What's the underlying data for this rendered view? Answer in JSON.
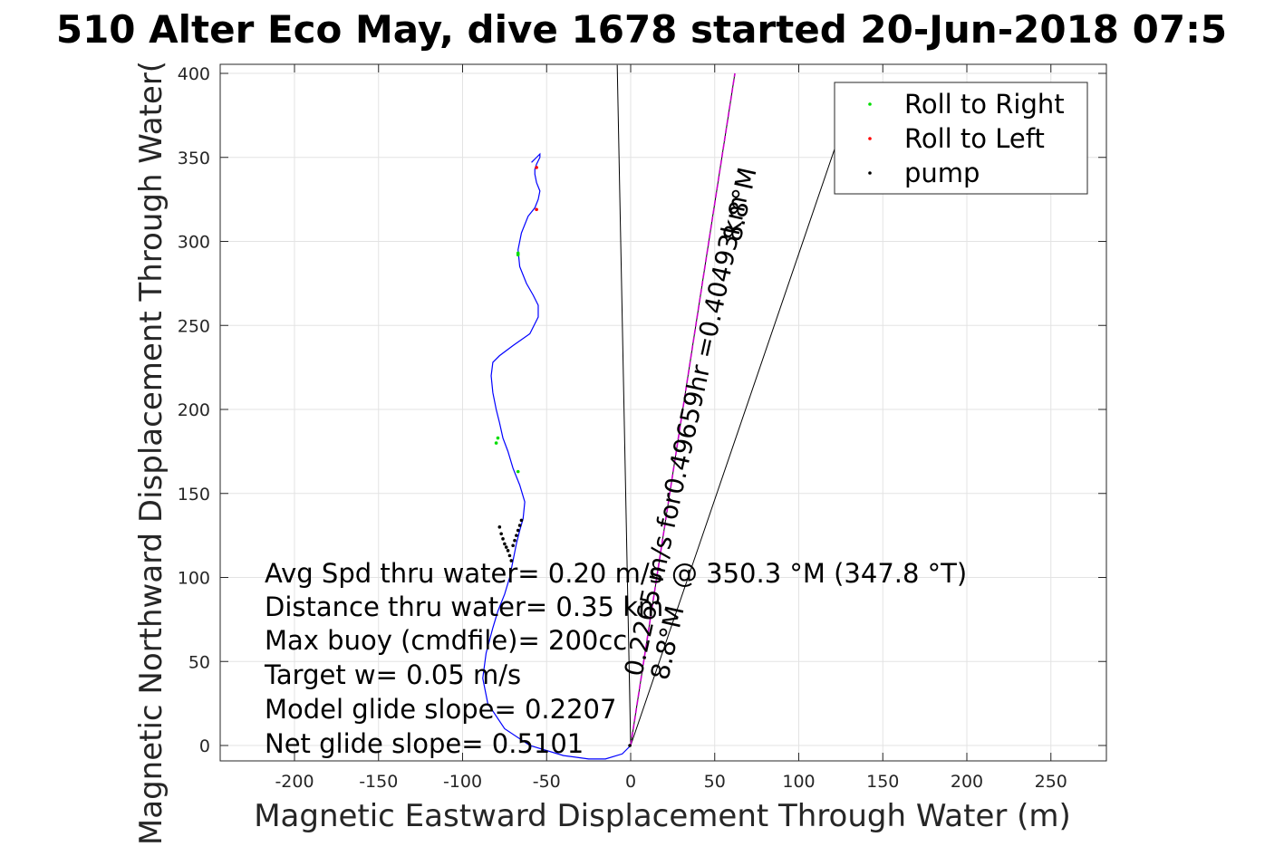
{
  "chart_data": {
    "type": "line",
    "title": "510 Alter Eco May, dive 1678 started 20-Jun-2018 07:5",
    "xlabel": "Magnetic Eastward Displacement Through Water (m)",
    "ylabel": "Magnetic Northward Displacement Through Water(",
    "xlim": [
      -245,
      280
    ],
    "ylim": [
      -8,
      405
    ],
    "xticks": [
      "-200",
      "-150",
      "-100",
      "-50",
      "0",
      "50",
      "100",
      "150",
      "200",
      "250"
    ],
    "xtick_values": [
      -200,
      -150,
      -100,
      -50,
      0,
      50,
      100,
      150,
      200,
      250
    ],
    "yticks": [
      "0",
      "50",
      "100",
      "150",
      "200",
      "250",
      "300",
      "350",
      "400"
    ],
    "ytick_values": [
      0,
      50,
      100,
      150,
      200,
      250,
      300,
      350,
      400
    ],
    "grid": true,
    "legend_position": "top-right",
    "legend": [
      {
        "label": "Roll to Right",
        "color": "#00dd00"
      },
      {
        "label": "Roll to Left",
        "color": "#ff0000"
      },
      {
        "label": "pump",
        "color": "#000000"
      }
    ],
    "track": {
      "color": "#0000ff",
      "x": [
        0,
        -5,
        -15,
        -25,
        -40,
        -60,
        -75,
        -85,
        -88,
        -86,
        -82,
        -79,
        -75,
        -72,
        -70,
        -68,
        -66,
        -64,
        -63,
        -66,
        -70,
        -73,
        -76,
        -78,
        -80,
        -82,
        -83,
        -82,
        -78,
        -70,
        -60,
        -55,
        -55,
        -58,
        -62,
        -66,
        -67,
        -65,
        -61,
        -57,
        -55,
        -54,
        -56,
        -57,
        -57,
        -56,
        -55,
        -54,
        -54,
        -56,
        -58,
        -59
      ],
      "y": [
        0,
        -5,
        -8,
        -8,
        -6,
        0,
        10,
        25,
        40,
        55,
        70,
        80,
        90,
        100,
        110,
        120,
        128,
        135,
        145,
        155,
        165,
        175,
        183,
        192,
        200,
        210,
        220,
        228,
        232,
        238,
        245,
        255,
        262,
        268,
        275,
        285,
        295,
        305,
        315,
        320,
        325,
        330,
        335,
        340,
        343,
        346,
        348,
        350,
        352,
        350,
        348,
        347
      ]
    },
    "markers": {
      "roll_right": {
        "x": [
          -67,
          -80,
          -67,
          -67,
          -79
        ],
        "y": [
          292,
          180,
          163,
          293,
          183
        ]
      },
      "roll_left": {
        "x": [
          -56,
          -56
        ],
        "y": [
          319,
          344
        ]
      },
      "pump": {
        "x": [
          -71,
          -72,
          -73,
          -74,
          -75,
          -76,
          -77,
          -78,
          -65,
          -66,
          -67,
          -68,
          -69,
          -70,
          -0.5
        ],
        "y": [
          110,
          113,
          116,
          118,
          120,
          123,
          126,
          130,
          134,
          131,
          128,
          125,
          122,
          119,
          0
        ]
      }
    },
    "lines": [
      {
        "name": "heading_line_left",
        "color": "#000000",
        "x": [
          0,
          -8
        ],
        "y": [
          0,
          405
        ]
      },
      {
        "name": "heading_line_mid",
        "color": "#000000",
        "x": [
          0,
          62
        ],
        "y": [
          0,
          400
        ]
      },
      {
        "name": "heading_line_right",
        "color": "#000000",
        "x": [
          0,
          122
        ],
        "y": [
          0,
          357
        ]
      },
      {
        "name": "course_line",
        "color": "#cc00cc",
        "x": [
          0,
          62
        ],
        "y": [
          0,
          400
        ]
      }
    ],
    "annotations": [
      "Avg Spd thru water=  0.20 m/s @ 350.3 °M (347.8 °T)",
      "Distance thru water=  0.35 km",
      "Max buoy (cmdfile)= 200cc",
      "Target w= 0.05 m/s",
      "Model glide slope= 0.2207",
      "Net glide slope= 0.5101"
    ],
    "rotated_labels": [
      {
        "text": "0.2265 m/s for0.49659hr =0.40493km",
        "x": 12,
        "y": 40
      },
      {
        "text": "8.8°M",
        "x": 67,
        "y": 310
      },
      {
        "text": "8.8°M",
        "x": 15,
        "y": 40
      }
    ]
  }
}
